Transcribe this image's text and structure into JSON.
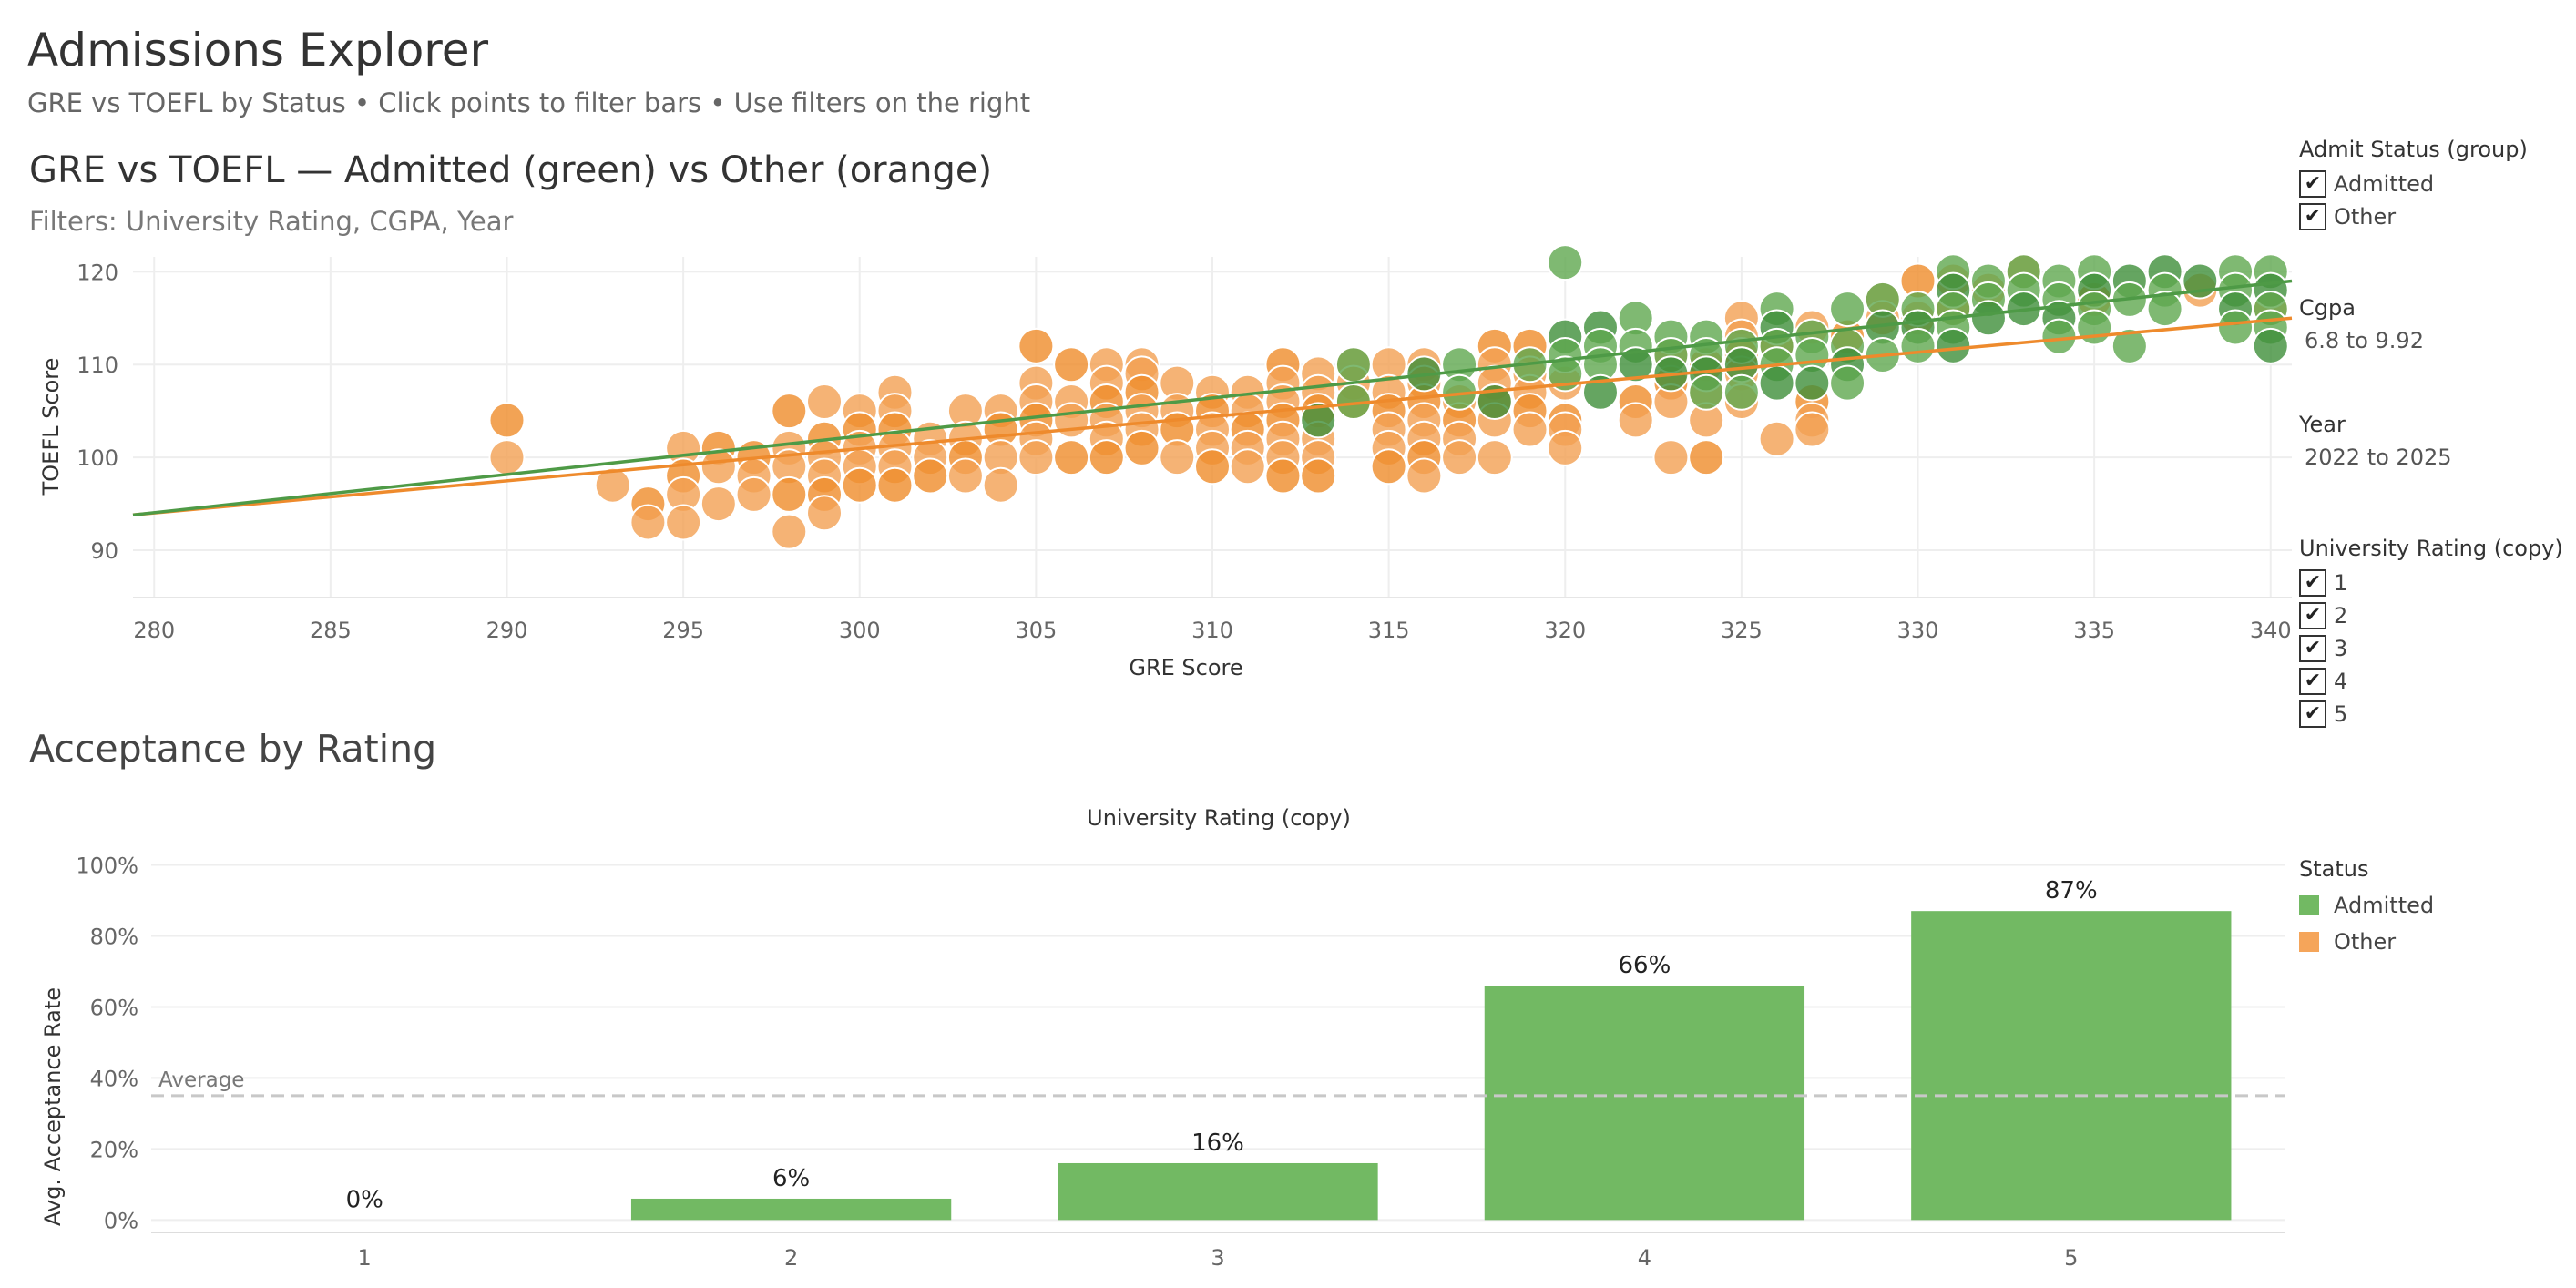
{
  "header": {
    "title": "Admissions Explorer",
    "subtitle": "GRE vs TOEFL by Status • Click points to filter bars • Use filters on the right"
  },
  "scatter_sheet": {
    "title": "GRE vs TOEFL — Admitted (green) vs Other (orange)",
    "subtitle": "Filters: University Rating, CGPA, Year"
  },
  "bar_sheet": {
    "title": "Acceptance by Rating"
  },
  "filters": {
    "admit_status": {
      "title": "Admit Status (group)",
      "options": [
        {
          "label": "Admitted",
          "checked": true
        },
        {
          "label": "Other",
          "checked": true
        }
      ]
    },
    "cgpa": {
      "title": "Cgpa",
      "value": "6.8 to 9.92"
    },
    "year": {
      "title": "Year",
      "value": "2022 to 2025"
    },
    "university_rating": {
      "title": "University Rating (copy)",
      "options": [
        {
          "label": "1",
          "checked": true
        },
        {
          "label": "2",
          "checked": true
        },
        {
          "label": "3",
          "checked": true
        },
        {
          "label": "4",
          "checked": true
        },
        {
          "label": "5",
          "checked": true
        }
      ]
    }
  },
  "status_legend": {
    "title": "Status",
    "items": [
      {
        "label": "Admitted",
        "color": "#72b963"
      },
      {
        "label": "Other",
        "color": "#f5a55a"
      }
    ]
  },
  "colors": {
    "admitted_point": "#5fa74f",
    "admitted_point_dark": "#3f8f3a",
    "other_point": "#f3a052",
    "other_point_dark": "#ef8c2a",
    "admitted_trend": "#4e9a46",
    "other_trend": "#ee8a2c",
    "bar": "#72b963",
    "average_line": "#c8c8c8"
  },
  "check_glyph": "✔",
  "chart_data": [
    {
      "type": "scatter",
      "xlabel": "GRE Score",
      "ylabel": "TOEFL Score",
      "xlim": [
        279.4,
        340.6
      ],
      "ylim": [
        84.9,
        121.6
      ],
      "x_ticks": [
        280,
        285,
        290,
        295,
        300,
        305,
        310,
        315,
        320,
        325,
        330,
        335,
        340
      ],
      "y_ticks": [
        90,
        100,
        110,
        120
      ],
      "grid": true,
      "series": [
        {
          "name": "Other",
          "points": [
            [
              290,
              104
            ],
            [
              290,
              100
            ],
            [
              293,
              97
            ],
            [
              294,
              95
            ],
            [
              294,
              93
            ],
            [
              295,
              101
            ],
            [
              295,
              98
            ],
            [
              295,
              96
            ],
            [
              295,
              93
            ],
            [
              296,
              101
            ],
            [
              296,
              99
            ],
            [
              296,
              95
            ],
            [
              297,
              100
            ],
            [
              297,
              98
            ],
            [
              297,
              96
            ],
            [
              298,
              105
            ],
            [
              298,
              101
            ],
            [
              298,
              99
            ],
            [
              298,
              96
            ],
            [
              298,
              92
            ],
            [
              299,
              106
            ],
            [
              299,
              102
            ],
            [
              299,
              100
            ],
            [
              299,
              98
            ],
            [
              299,
              96
            ],
            [
              299,
              94
            ],
            [
              300,
              105
            ],
            [
              300,
              103
            ],
            [
              300,
              101
            ],
            [
              300,
              99
            ],
            [
              300,
              97
            ],
            [
              301,
              107
            ],
            [
              301,
              105
            ],
            [
              301,
              103
            ],
            [
              301,
              101
            ],
            [
              301,
              99
            ],
            [
              301,
              97
            ],
            [
              302,
              102
            ],
            [
              302,
              100
            ],
            [
              302,
              98
            ],
            [
              303,
              105
            ],
            [
              303,
              102
            ],
            [
              303,
              100
            ],
            [
              303,
              98
            ],
            [
              304,
              105
            ],
            [
              304,
              103
            ],
            [
              304,
              100
            ],
            [
              304,
              97
            ],
            [
              305,
              112
            ],
            [
              305,
              108
            ],
            [
              305,
              106
            ],
            [
              305,
              104
            ],
            [
              305,
              102
            ],
            [
              305,
              100
            ],
            [
              306,
              110
            ],
            [
              306,
              106
            ],
            [
              306,
              104
            ],
            [
              306,
              100
            ],
            [
              307,
              110
            ],
            [
              307,
              108
            ],
            [
              307,
              106
            ],
            [
              307,
              104
            ],
            [
              307,
              102
            ],
            [
              307,
              100
            ],
            [
              308,
              110
            ],
            [
              308,
              109
            ],
            [
              308,
              107
            ],
            [
              308,
              105
            ],
            [
              308,
              103
            ],
            [
              308,
              101
            ],
            [
              309,
              108
            ],
            [
              309,
              105
            ],
            [
              309,
              103
            ],
            [
              309,
              100
            ],
            [
              310,
              107
            ],
            [
              310,
              105
            ],
            [
              310,
              103
            ],
            [
              310,
              101
            ],
            [
              310,
              99
            ],
            [
              311,
              107
            ],
            [
              311,
              105
            ],
            [
              311,
              103
            ],
            [
              311,
              101
            ],
            [
              311,
              99
            ],
            [
              312,
              110
            ],
            [
              312,
              108
            ],
            [
              312,
              106
            ],
            [
              312,
              104
            ],
            [
              312,
              102
            ],
            [
              312,
              100
            ],
            [
              312,
              98
            ],
            [
              313,
              109
            ],
            [
              313,
              107
            ],
            [
              313,
              105
            ],
            [
              313,
              102
            ],
            [
              313,
              100
            ],
            [
              313,
              98
            ],
            [
              314,
              110
            ],
            [
              314,
              108
            ],
            [
              314,
              106
            ],
            [
              315,
              110
            ],
            [
              315,
              107
            ],
            [
              315,
              105
            ],
            [
              315,
              103
            ],
            [
              315,
              101
            ],
            [
              315,
              99
            ],
            [
              316,
              110
            ],
            [
              316,
              108
            ],
            [
              316,
              106
            ],
            [
              316,
              104
            ],
            [
              316,
              102
            ],
            [
              316,
              100
            ],
            [
              316,
              98
            ],
            [
              317,
              106
            ],
            [
              317,
              104
            ],
            [
              317,
              102
            ],
            [
              317,
              100
            ],
            [
              318,
              112
            ],
            [
              318,
              110
            ],
            [
              318,
              108
            ],
            [
              318,
              106
            ],
            [
              318,
              104
            ],
            [
              318,
              100
            ],
            [
              319,
              112
            ],
            [
              319,
              109
            ],
            [
              319,
              107
            ],
            [
              319,
              105
            ],
            [
              319,
              103
            ],
            [
              320,
              108
            ],
            [
              320,
              104
            ],
            [
              320,
              103
            ],
            [
              320,
              101
            ],
            [
              322,
              106
            ],
            [
              322,
              104
            ],
            [
              323,
              111
            ],
            [
              323,
              108
            ],
            [
              323,
              106
            ],
            [
              323,
              100
            ],
            [
              324,
              110
            ],
            [
              324,
              107
            ],
            [
              324,
              104
            ],
            [
              324,
              100
            ],
            [
              325,
              115
            ],
            [
              325,
              113
            ],
            [
              325,
              111
            ],
            [
              325,
              109
            ],
            [
              325,
              106
            ],
            [
              326,
              112
            ],
            [
              326,
              102
            ],
            [
              327,
              114
            ],
            [
              327,
              106
            ],
            [
              327,
              104
            ],
            [
              327,
              103
            ],
            [
              328,
              113
            ],
            [
              329,
              117
            ],
            [
              329,
              115
            ],
            [
              330,
              119
            ],
            [
              330,
              115
            ],
            [
              331,
              119
            ],
            [
              331,
              116
            ],
            [
              332,
              118
            ],
            [
              333,
              120
            ],
            [
              335,
              117
            ],
            [
              338,
              118
            ],
            [
              340,
              116
            ]
          ],
          "trend": [
            [
              279.4,
              93.8
            ],
            [
              340.6,
              115.0
            ]
          ]
        },
        {
          "name": "Admitted",
          "points": [
            [
              313,
              104
            ],
            [
              314,
              110
            ],
            [
              314,
              106
            ],
            [
              316,
              109
            ],
            [
              317,
              110
            ],
            [
              317,
              107
            ],
            [
              318,
              106
            ],
            [
              319,
              110
            ],
            [
              320,
              121
            ],
            [
              320,
              113
            ],
            [
              320,
              111
            ],
            [
              320,
              109
            ],
            [
              321,
              114
            ],
            [
              321,
              112
            ],
            [
              321,
              110
            ],
            [
              321,
              107
            ],
            [
              322,
              115
            ],
            [
              322,
              112
            ],
            [
              322,
              110
            ],
            [
              323,
              113
            ],
            [
              323,
              111
            ],
            [
              323,
              109
            ],
            [
              324,
              113
            ],
            [
              324,
              111
            ],
            [
              324,
              109
            ],
            [
              324,
              107
            ],
            [
              325,
              112
            ],
            [
              325,
              110
            ],
            [
              325,
              107
            ],
            [
              326,
              116
            ],
            [
              326,
              114
            ],
            [
              326,
              112
            ],
            [
              326,
              110
            ],
            [
              326,
              108
            ],
            [
              327,
              113
            ],
            [
              327,
              111
            ],
            [
              327,
              108
            ],
            [
              328,
              116
            ],
            [
              328,
              112
            ],
            [
              328,
              110
            ],
            [
              328,
              108
            ],
            [
              329,
              117
            ],
            [
              329,
              114
            ],
            [
              329,
              111
            ],
            [
              330,
              116
            ],
            [
              330,
              114
            ],
            [
              330,
              112
            ],
            [
              331,
              120
            ],
            [
              331,
              118
            ],
            [
              331,
              116
            ],
            [
              331,
              114
            ],
            [
              331,
              112
            ],
            [
              332,
              119
            ],
            [
              332,
              117
            ],
            [
              332,
              115
            ],
            [
              333,
              120
            ],
            [
              333,
              118
            ],
            [
              333,
              116
            ],
            [
              334,
              119
            ],
            [
              334,
              117
            ],
            [
              334,
              115
            ],
            [
              334,
              113
            ],
            [
              335,
              120
            ],
            [
              335,
              118
            ],
            [
              335,
              116
            ],
            [
              335,
              114
            ],
            [
              336,
              119
            ],
            [
              336,
              117
            ],
            [
              336,
              112
            ],
            [
              337,
              120
            ],
            [
              337,
              118
            ],
            [
              337,
              116
            ],
            [
              338,
              119
            ],
            [
              339,
              120
            ],
            [
              339,
              118
            ],
            [
              339,
              116
            ],
            [
              339,
              114
            ],
            [
              340,
              120
            ],
            [
              340,
              118
            ],
            [
              340,
              116
            ],
            [
              340,
              114
            ],
            [
              340,
              112
            ]
          ],
          "trend": [
            [
              279.4,
              93.8
            ],
            [
              340.6,
              119.0
            ]
          ]
        }
      ]
    },
    {
      "type": "bar",
      "title": "University Rating (copy)",
      "xlabel": "",
      "ylabel": "Avg. Acceptance Rate",
      "categories": [
        "1",
        "2",
        "3",
        "4",
        "5"
      ],
      "values": [
        0,
        6,
        16,
        66,
        87
      ],
      "data_labels": [
        "0%",
        "6%",
        "16%",
        "66%",
        "87%"
      ],
      "ylim": [
        -3.5,
        105
      ],
      "y_ticks": [
        0,
        20,
        40,
        60,
        80,
        100
      ],
      "y_tick_labels": [
        "0%",
        "20%",
        "40%",
        "60%",
        "80%",
        "100%"
      ],
      "grid": true,
      "reference_line": {
        "label": "Average",
        "value": 35
      }
    }
  ]
}
